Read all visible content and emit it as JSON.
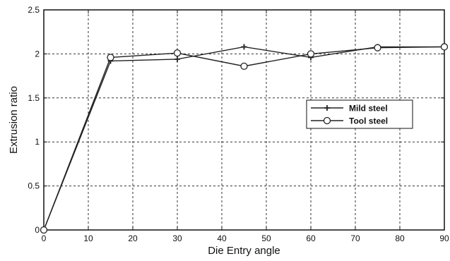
{
  "chart_data": {
    "type": "line",
    "title": "",
    "xlabel": "Die Entry angle",
    "ylabel": "Extrusion ratio",
    "xlim": [
      0,
      90
    ],
    "ylim": [
      0,
      2.5
    ],
    "x_ticks": [
      0,
      10,
      20,
      30,
      40,
      50,
      60,
      70,
      80,
      90
    ],
    "y_ticks": [
      0,
      0.5,
      1,
      1.5,
      2,
      2.5
    ],
    "x_tick_labels": [
      "0",
      "10",
      "20",
      "30",
      "40",
      "50",
      "60",
      "70",
      "80",
      "90"
    ],
    "y_tick_labels": [
      "0",
      "0.5",
      "1",
      "1.5",
      "2",
      "2.5"
    ],
    "grid": true,
    "legend_position": "right",
    "series": [
      {
        "name": "Mild steel",
        "marker": "plus",
        "color": "#222222",
        "x": [
          0,
          15,
          30,
          45,
          60,
          75,
          90
        ],
        "y": [
          0,
          1.92,
          1.94,
          2.08,
          1.96,
          2.08,
          2.08
        ]
      },
      {
        "name": "Tool steel",
        "marker": "circle",
        "color": "#222222",
        "x": [
          0,
          15,
          30,
          45,
          60,
          75,
          90
        ],
        "y": [
          0,
          1.96,
          2.01,
          1.86,
          2.0,
          2.07,
          2.08
        ]
      }
    ]
  }
}
